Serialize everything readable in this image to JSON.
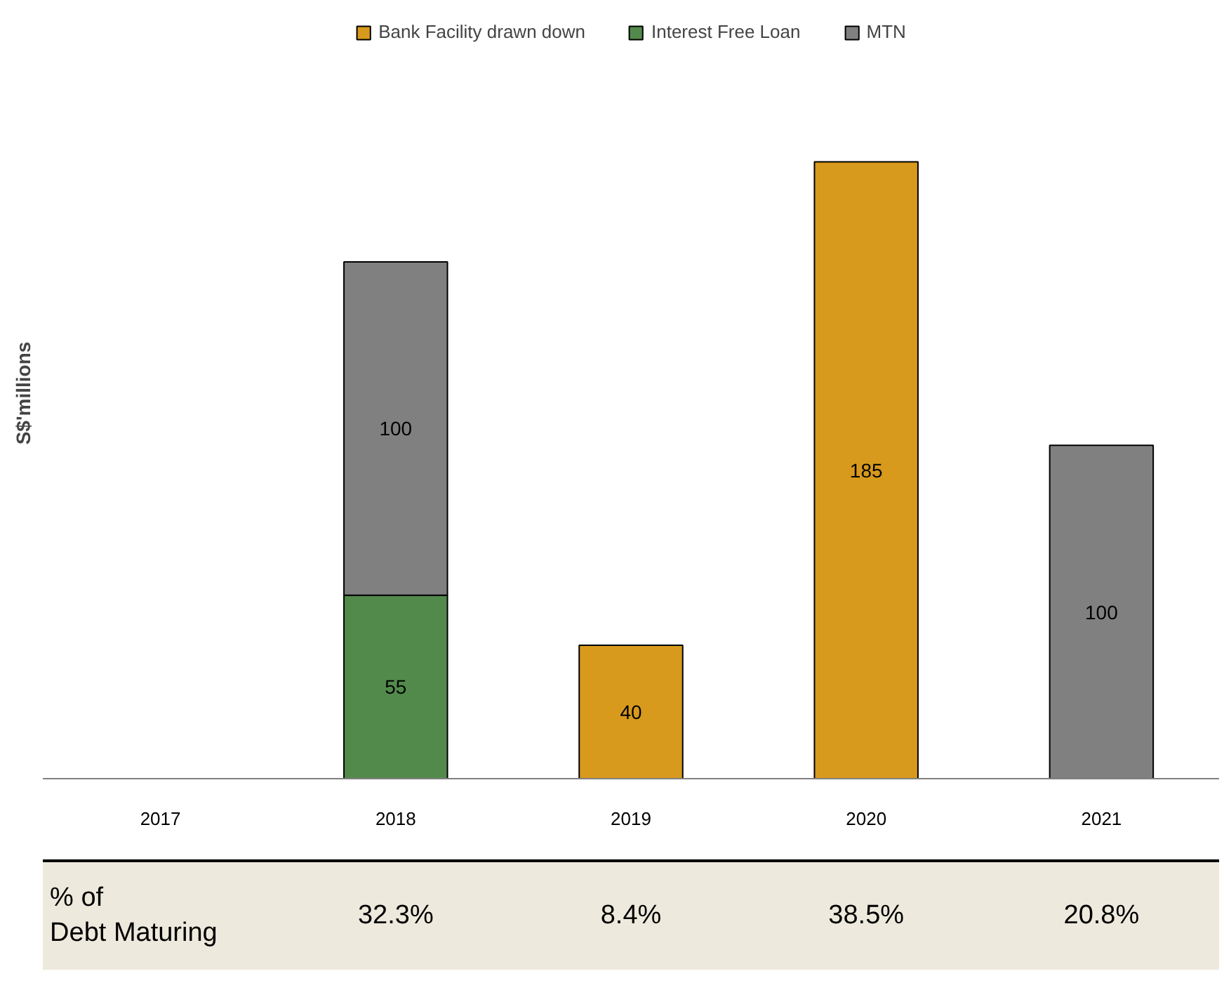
{
  "chart_data": {
    "type": "bar",
    "stacked": true,
    "ylabel": "S$'millions",
    "categories": [
      "2017",
      "2018",
      "2019",
      "2020",
      "2021"
    ],
    "series": [
      {
        "name": "Bank Facility drawn down",
        "color": "#d89a1c",
        "values": [
          null,
          null,
          40,
          185,
          null
        ]
      },
      {
        "name": "Interest Free Loan",
        "color": "#528a4b",
        "values": [
          null,
          55,
          null,
          null,
          null
        ]
      },
      {
        "name": "MTN",
        "color": "#808080",
        "values": [
          null,
          100,
          null,
          null,
          100
        ]
      }
    ],
    "data_labels": true,
    "legend": "top",
    "tick_labels": "x",
    "annotations": [
      "% of Debt Maturing",
      "32.3%",
      "8.4%",
      "38.5%",
      "20.8%"
    ]
  }
}
